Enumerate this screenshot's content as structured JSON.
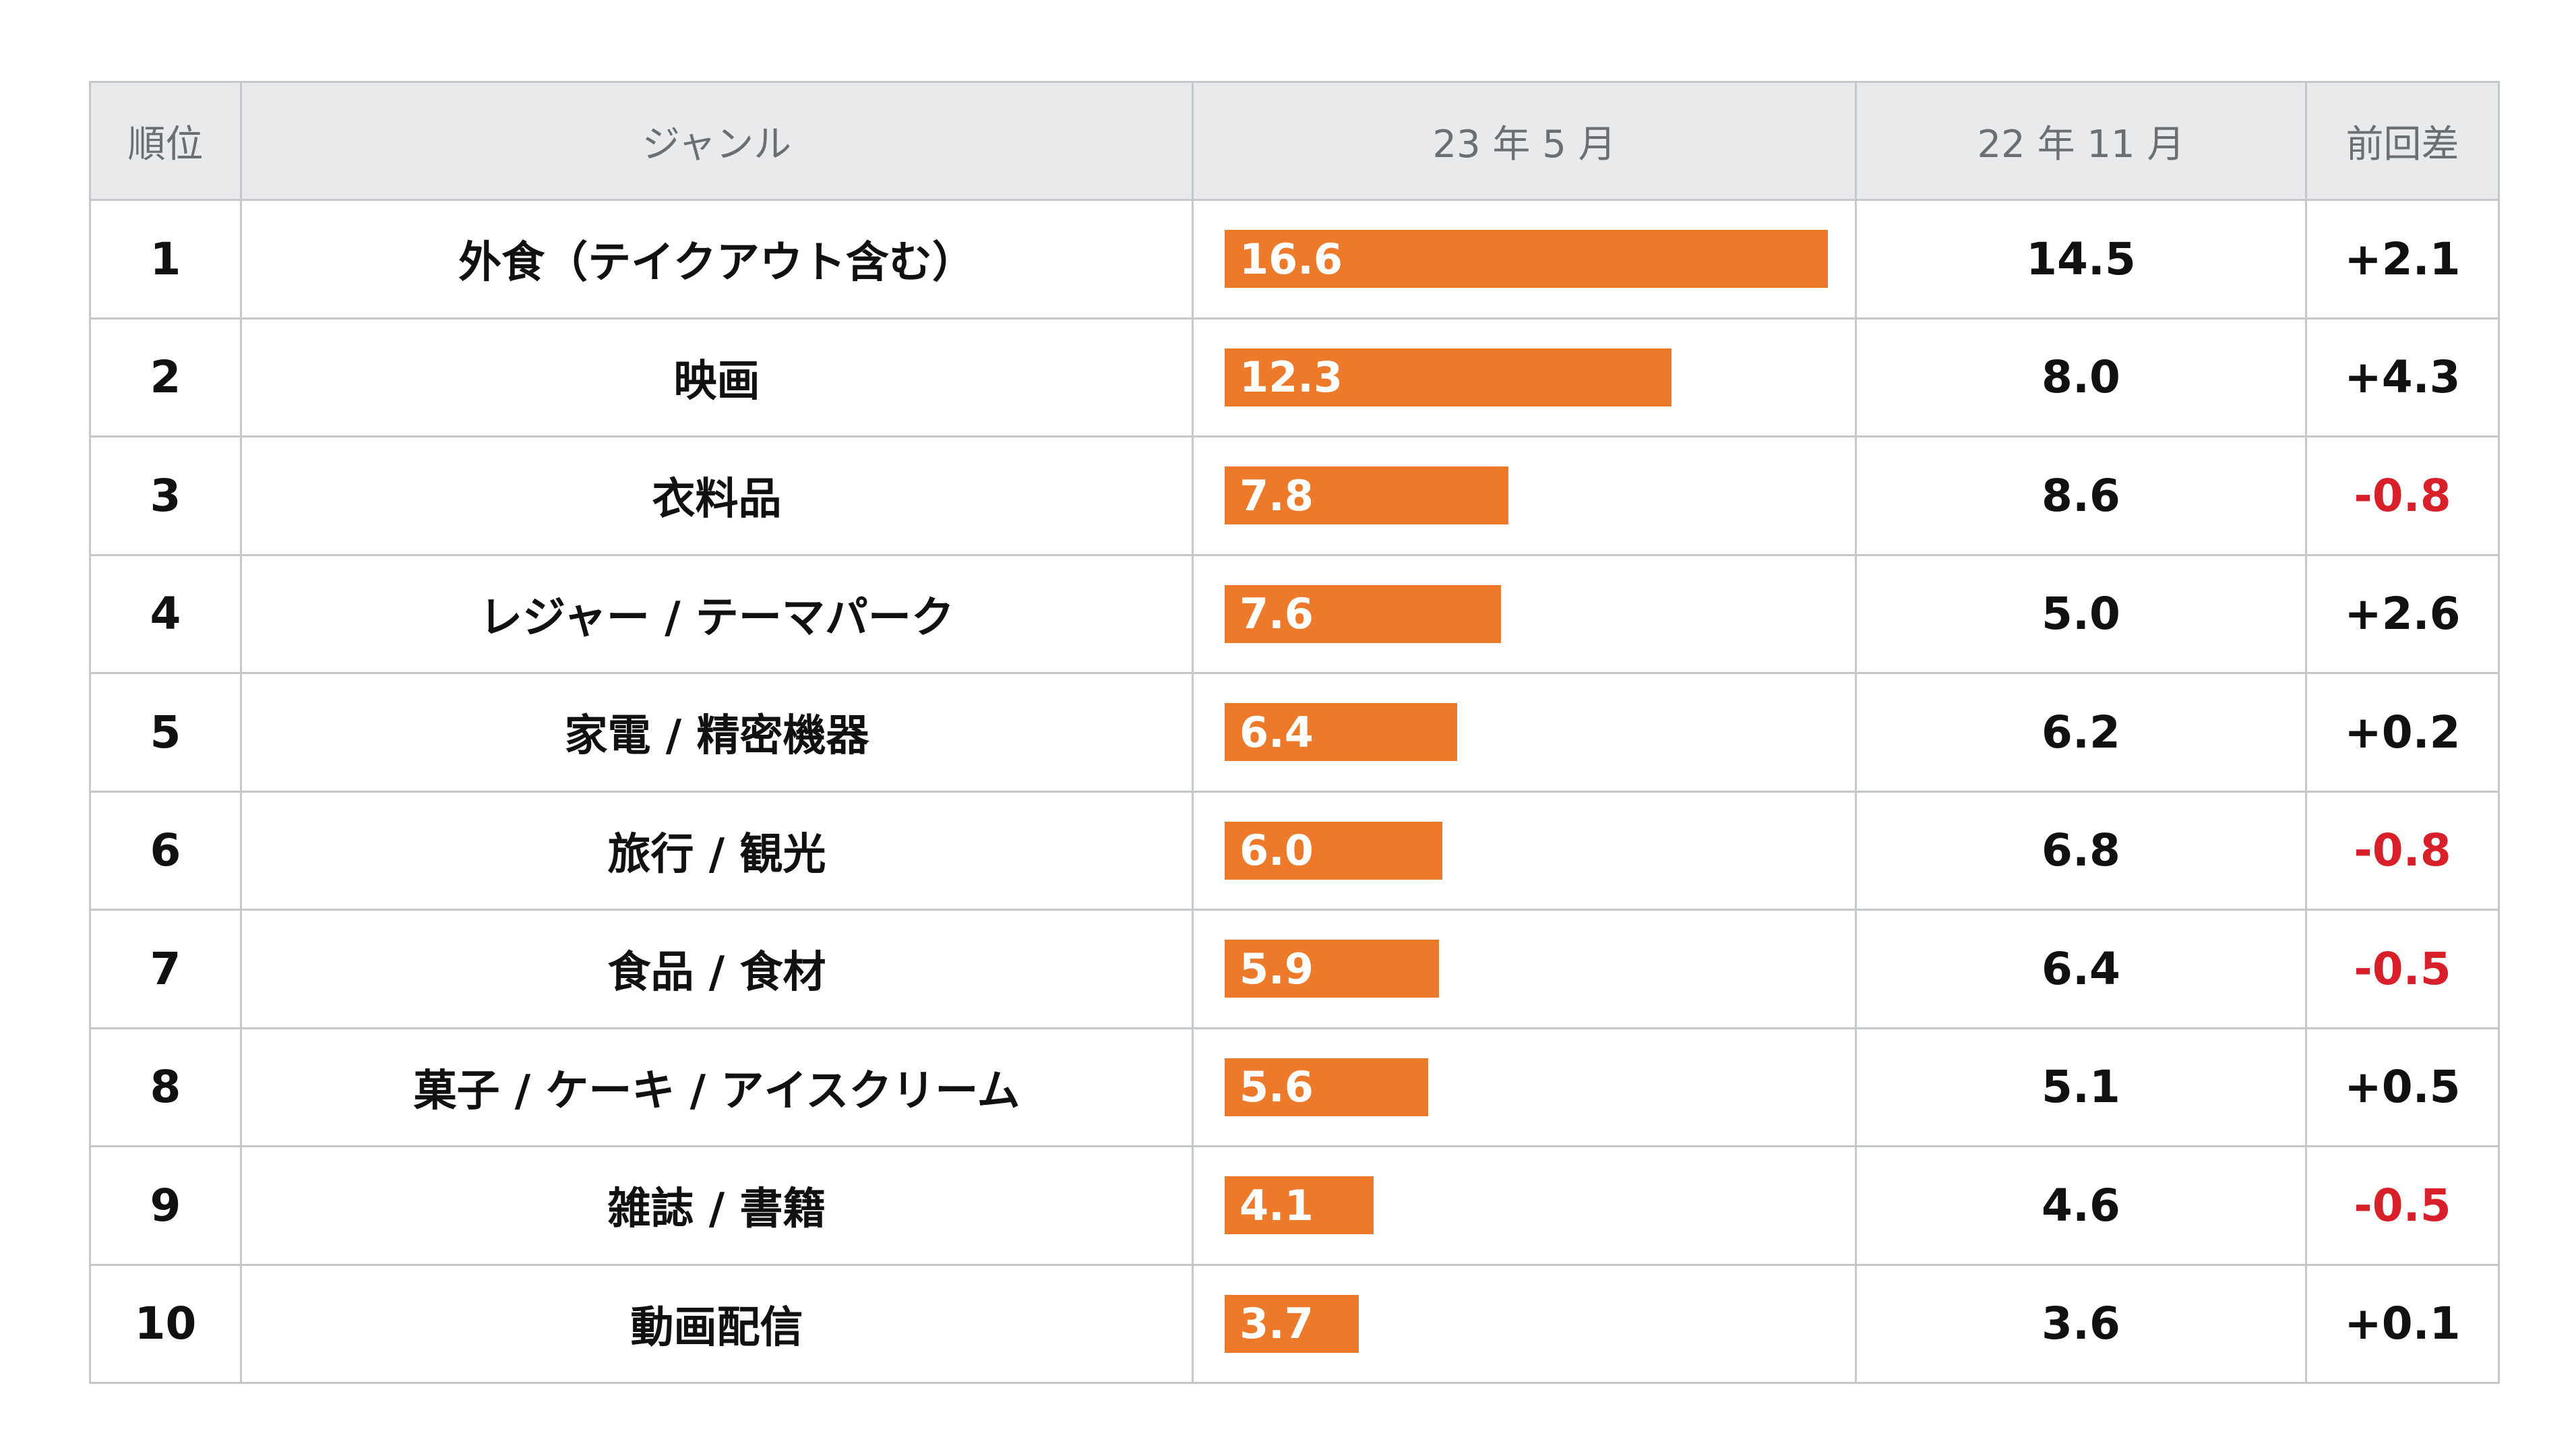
{
  "chart_data": {
    "type": "table",
    "columns": [
      "順位",
      "ジャンル",
      "23 年 5 月",
      "22 年 11 月",
      "前回差"
    ],
    "bar_column": "23 年 5 月",
    "bar_max": 16.6,
    "rows": [
      {
        "rank": "1",
        "genre": "外食（テイクアウト含む）",
        "may23": 16.6,
        "may23_label": "16.6",
        "nov22": "14.5",
        "diff": "+2.1",
        "diff_negative": false
      },
      {
        "rank": "2",
        "genre": "映画",
        "may23": 12.3,
        "may23_label": "12.3",
        "nov22": "8.0",
        "diff": "+4.3",
        "diff_negative": false
      },
      {
        "rank": "3",
        "genre": "衣料品",
        "may23": 7.8,
        "may23_label": "7.8",
        "nov22": "8.6",
        "diff": "-0.8",
        "diff_negative": true
      },
      {
        "rank": "4",
        "genre": "レジャー / テーマパーク",
        "may23": 7.6,
        "may23_label": "7.6",
        "nov22": "5.0",
        "diff": "+2.6",
        "diff_negative": false
      },
      {
        "rank": "5",
        "genre": "家電 / 精密機器",
        "may23": 6.4,
        "may23_label": "6.4",
        "nov22": "6.2",
        "diff": "+0.2",
        "diff_negative": false
      },
      {
        "rank": "6",
        "genre": "旅行 / 観光",
        "may23": 6.0,
        "may23_label": "6.0",
        "nov22": "6.8",
        "diff": "-0.8",
        "diff_negative": true
      },
      {
        "rank": "7",
        "genre": "食品 / 食材",
        "may23": 5.9,
        "may23_label": "5.9",
        "nov22": "6.4",
        "diff": "-0.5",
        "diff_negative": true
      },
      {
        "rank": "8",
        "genre": "菓子 / ケーキ / アイスクリーム",
        "may23": 5.6,
        "may23_label": "5.6",
        "nov22": "5.1",
        "diff": "+0.5",
        "diff_negative": false
      },
      {
        "rank": "9",
        "genre": "雑誌 / 書籍",
        "may23": 4.1,
        "may23_label": "4.1",
        "nov22": "4.6",
        "diff": "-0.5",
        "diff_negative": true
      },
      {
        "rank": "10",
        "genre": "動画配信",
        "may23": 3.7,
        "may23_label": "3.7",
        "nov22": "3.6",
        "diff": "+0.1",
        "diff_negative": false
      }
    ]
  },
  "colors": {
    "bar": "#ec7a2a",
    "negative": "#d8202a",
    "header_bg": "#e8eaec",
    "border": "#c5c8cb"
  }
}
